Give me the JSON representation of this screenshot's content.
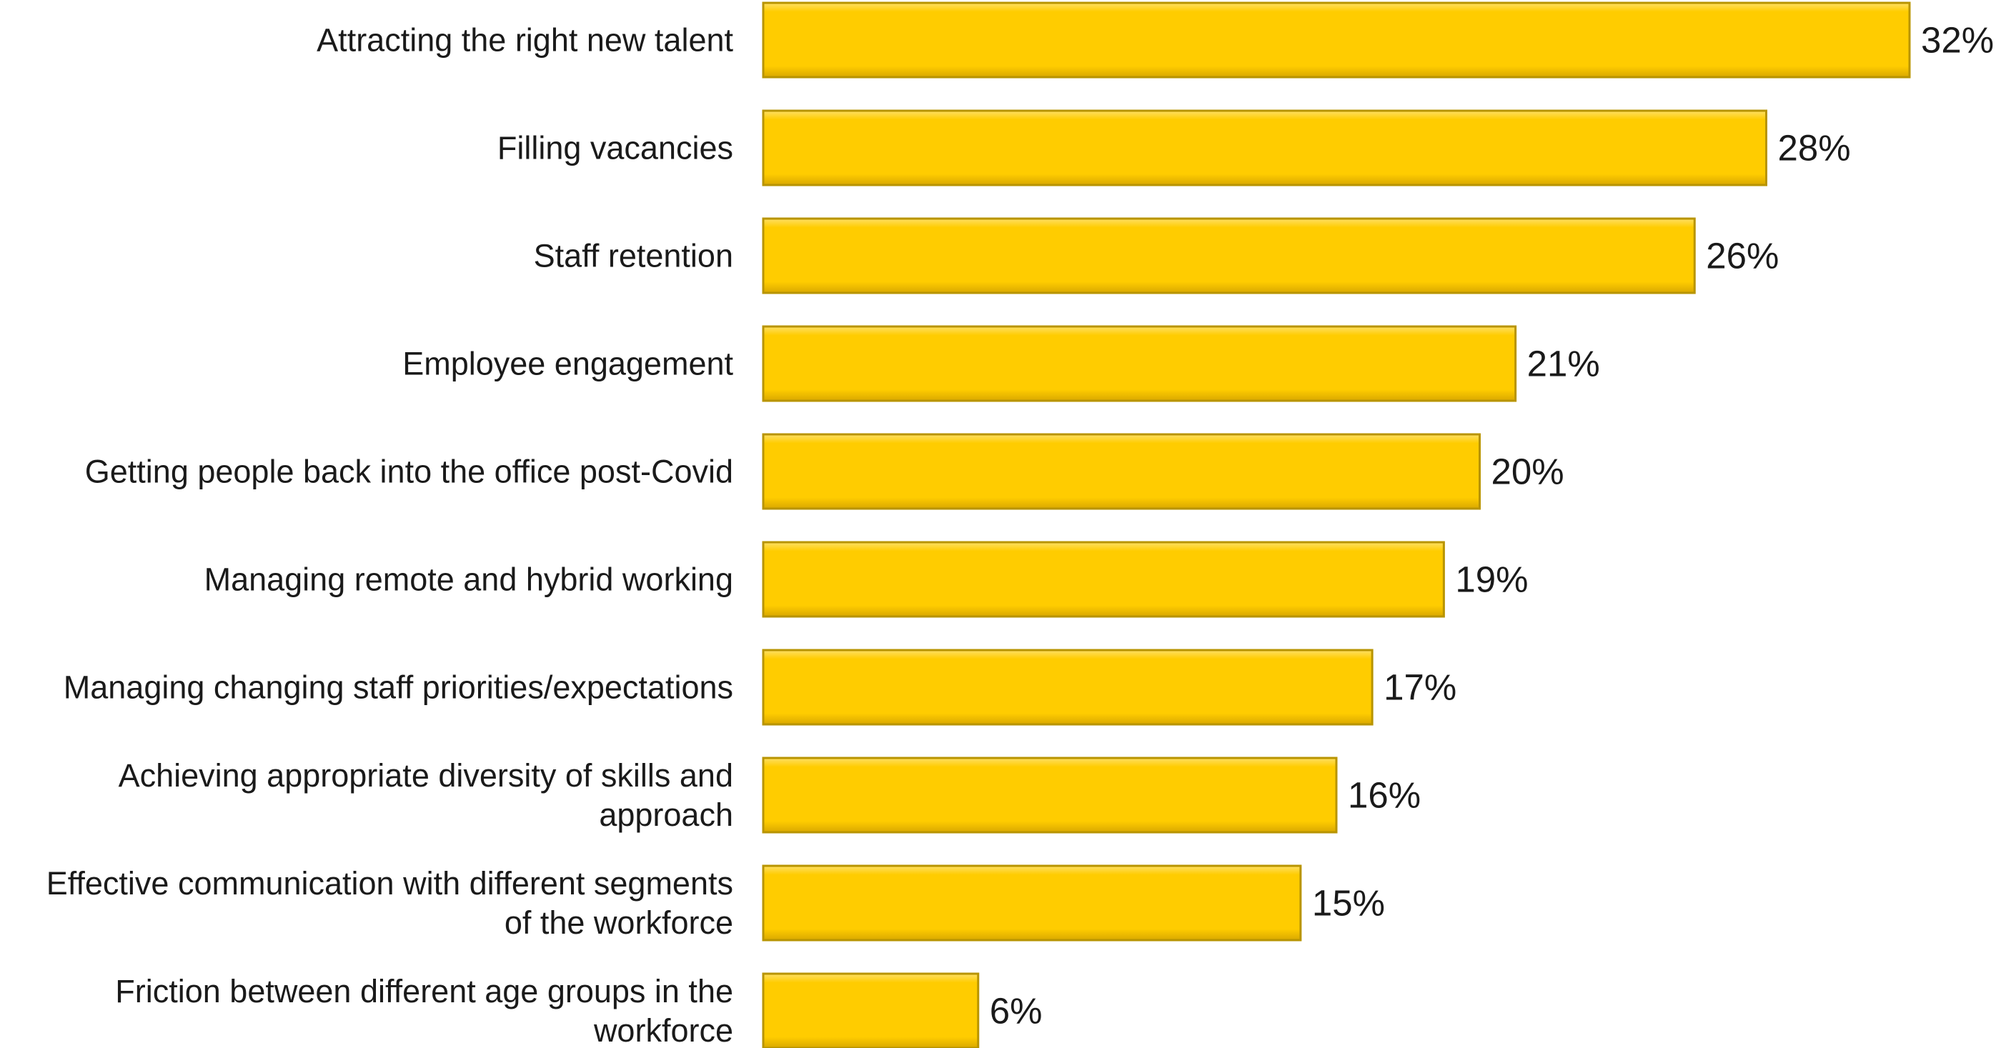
{
  "chart_data": {
    "type": "bar",
    "orientation": "horizontal",
    "categories": [
      "Attracting the right new talent",
      "Filling vacancies",
      "Staff retention",
      "Employee engagement",
      "Getting people back into the office post-Covid",
      "Managing remote and hybrid working",
      "Managing changing staff priorities/expectations",
      "Achieving appropriate diversity of skills and approach",
      "Effective communication with different segments of the workforce",
      "Friction between different age groups in the workforce"
    ],
    "category_lines": [
      [
        "Attracting the right new talent"
      ],
      [
        "Filling vacancies"
      ],
      [
        "Staff retention"
      ],
      [
        "Employee engagement"
      ],
      [
        "Getting people back into the office post-Covid"
      ],
      [
        "Managing remote and hybrid working"
      ],
      [
        "Managing changing staff priorities/expectations"
      ],
      [
        "Achieving appropriate diversity of skills and",
        "approach"
      ],
      [
        "Effective communication with different segments",
        "of the workforce"
      ],
      [
        "Friction between different age groups in the",
        "workforce"
      ]
    ],
    "values": [
      32,
      28,
      26,
      21,
      20,
      19,
      17,
      16,
      15,
      6
    ],
    "value_labels": [
      "32%",
      "28%",
      "26%",
      "21%",
      "20%",
      "19%",
      "17%",
      "16%",
      "15%",
      "6%"
    ],
    "xlim": [
      0,
      32
    ],
    "bar_color": "#FFCC00",
    "bar_edge_color": "#B89400",
    "grid": false,
    "legend": "none"
  }
}
